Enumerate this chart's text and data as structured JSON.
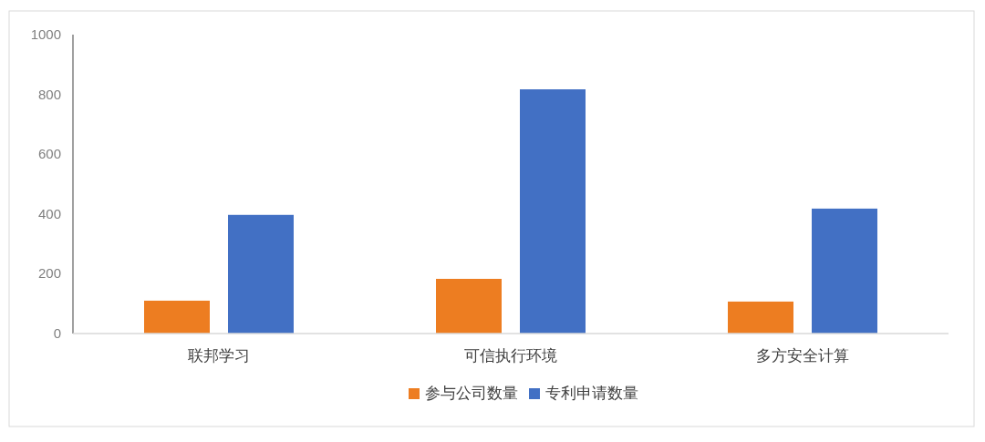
{
  "chart_data": {
    "type": "bar",
    "categories": [
      "联邦学习",
      "可信执行环境",
      "多方安全计算"
    ],
    "series": [
      {
        "name": "参与公司数量",
        "color": "#ed7d21",
        "values": [
          110,
          183,
          107
        ]
      },
      {
        "name": "专利申请数量",
        "color": "#4270c4",
        "values": [
          397,
          817,
          418
        ]
      }
    ],
    "ylim": [
      0,
      1000
    ],
    "yticks": [
      0,
      200,
      400,
      600,
      800,
      1000
    ],
    "grid": false,
    "legend": "bottom"
  }
}
